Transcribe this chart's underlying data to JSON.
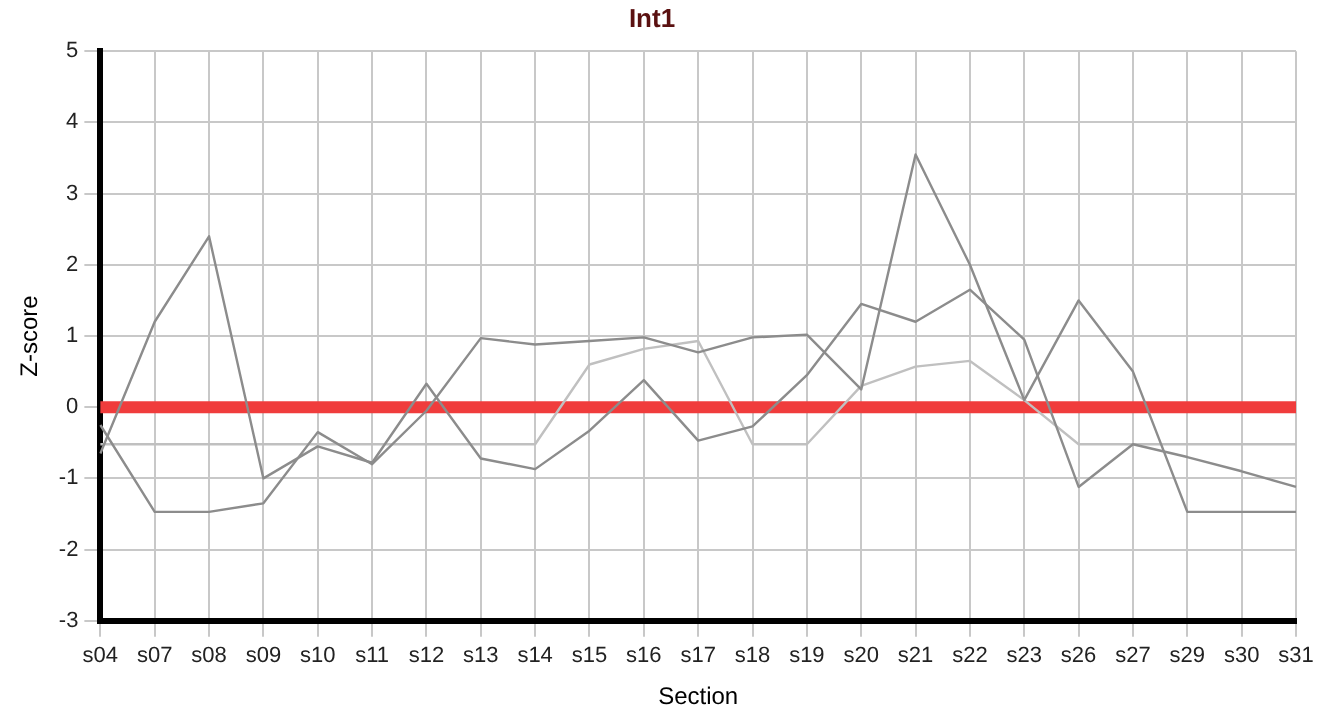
{
  "chart_data": {
    "type": "line",
    "title": "Int1",
    "xlabel": "Section",
    "ylabel": "Z-score",
    "categories": [
      "s04",
      "s07",
      "s08",
      "s09",
      "s10",
      "s11",
      "s12",
      "s13",
      "s14",
      "s15",
      "s16",
      "s17",
      "s18",
      "s19",
      "s20",
      "s21",
      "s22",
      "s23",
      "s26",
      "s27",
      "s29",
      "s30",
      "s31"
    ],
    "series": [
      {
        "color": "#8c8c8c",
        "values": [
          -0.65,
          1.2,
          2.4,
          -1.0,
          -0.55,
          -0.78,
          0.33,
          -0.72,
          -0.87,
          -0.33,
          0.38,
          -0.47,
          -0.27,
          0.45,
          1.45,
          1.2,
          1.65,
          0.95,
          -1.12,
          -0.52,
          -0.7,
          -0.9,
          -1.12
        ]
      },
      {
        "color": "#8c8c8c",
        "values": [
          -0.25,
          -1.47,
          -1.47,
          -1.35,
          -0.35,
          -0.8,
          -0.05,
          0.97,
          0.88,
          0.93,
          0.98,
          0.77,
          0.98,
          1.02,
          0.25,
          3.55,
          2.0,
          0.1,
          1.5,
          0.5,
          -1.47,
          -1.47,
          -1.47
        ]
      },
      {
        "color": "#c0c0c0",
        "values": [
          -0.52,
          -0.52,
          -0.52,
          -0.52,
          -0.52,
          -0.52,
          -0.52,
          -0.52,
          -0.52,
          0.6,
          0.82,
          0.93,
          -0.52,
          -0.52,
          0.3,
          0.57,
          0.65,
          0.1,
          -0.52,
          -0.52,
          -0.52,
          -0.52,
          -0.52
        ]
      }
    ],
    "ylim": [
      -3,
      5
    ],
    "yticks": [
      -3,
      -2,
      -1,
      0,
      1,
      2,
      3,
      4,
      5
    ],
    "ref_lines": [
      {
        "axis": "y",
        "value": 0,
        "color": "#f03c3c"
      }
    ],
    "grid": true,
    "legend": false,
    "marker": "none",
    "line_style": "solid"
  }
}
